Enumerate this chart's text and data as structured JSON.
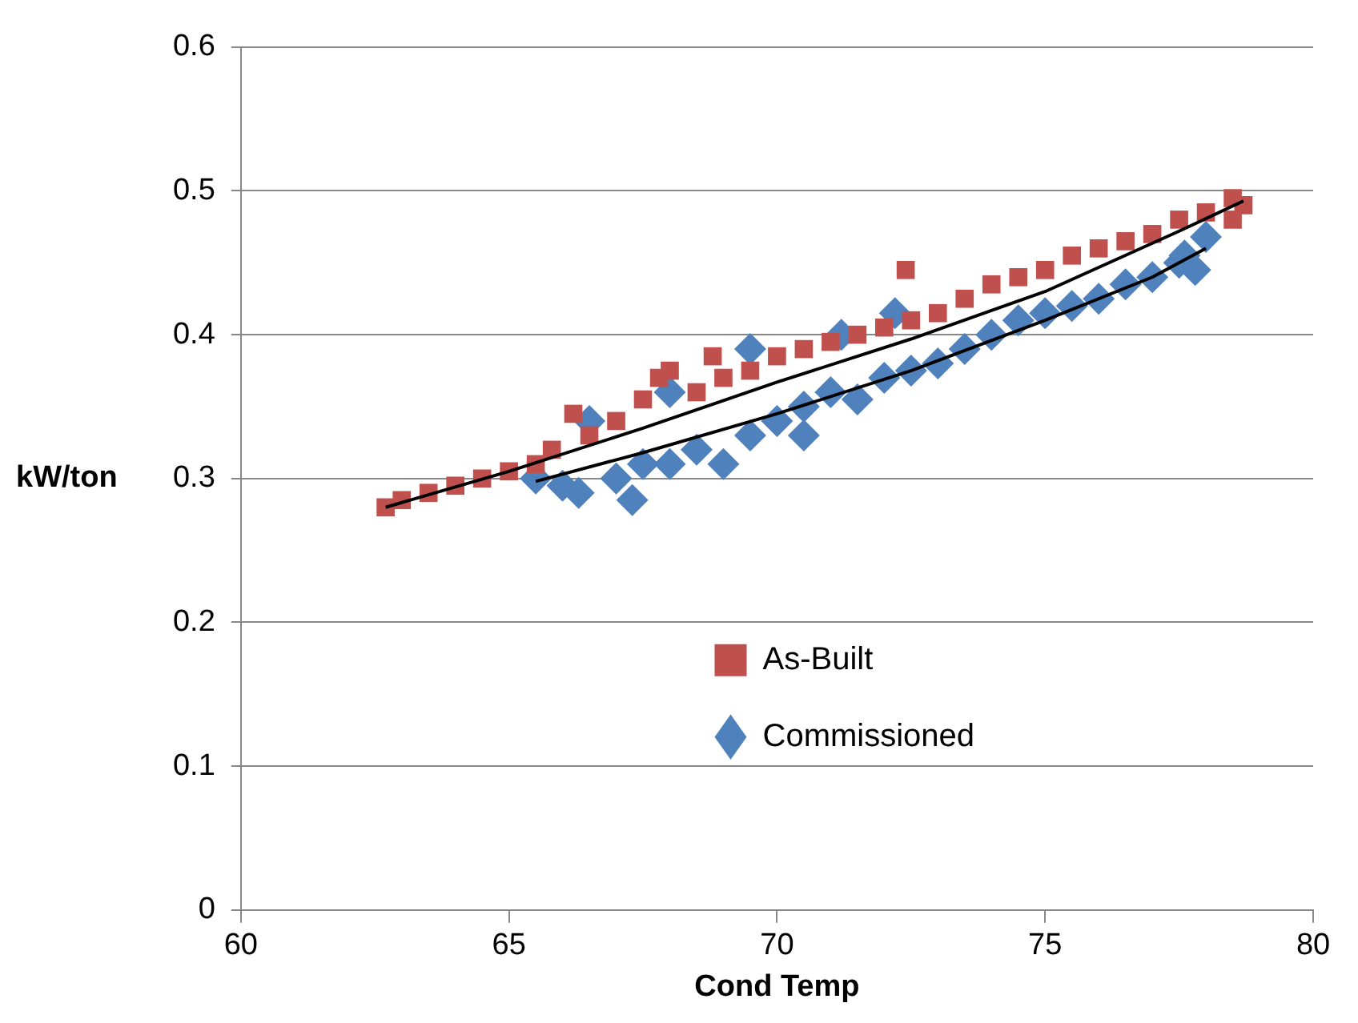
{
  "chart_data": {
    "type": "scatter",
    "xlabel": "Cond Temp",
    "ylabel": "kW/ton",
    "xlim": [
      60,
      80
    ],
    "ylim": [
      0,
      0.6
    ],
    "xticks": [
      60,
      65,
      70,
      75,
      80
    ],
    "yticks": [
      0,
      0.1,
      0.2,
      0.3,
      0.4,
      0.5,
      0.6
    ],
    "grid": "y",
    "legend": "bottom",
    "series": [
      {
        "name": "As-Built",
        "color": "#c0504d",
        "marker": "square",
        "x": [
          62.7,
          63,
          63.5,
          64,
          64.5,
          65,
          65.5,
          65.8,
          66.2,
          66.5,
          67,
          67.5,
          67.8,
          68,
          68.5,
          68.8,
          69,
          69.5,
          70,
          70.5,
          71,
          71.5,
          72,
          72.4,
          72.5,
          73,
          73.5,
          74,
          74.5,
          75,
          75.5,
          76,
          76.5,
          77,
          77.5,
          78,
          78.5,
          78.7,
          78.5
        ],
        "values": [
          0.28,
          0.285,
          0.29,
          0.295,
          0.3,
          0.305,
          0.31,
          0.32,
          0.345,
          0.33,
          0.34,
          0.355,
          0.37,
          0.375,
          0.36,
          0.385,
          0.37,
          0.375,
          0.385,
          0.39,
          0.395,
          0.4,
          0.405,
          0.445,
          0.41,
          0.415,
          0.425,
          0.435,
          0.44,
          0.445,
          0.455,
          0.46,
          0.465,
          0.47,
          0.48,
          0.485,
          0.495,
          0.49,
          0.48
        ]
      },
      {
        "name": "Commissioned",
        "color": "#4f81bd",
        "marker": "diamond",
        "x": [
          65.5,
          66,
          66.3,
          66.5,
          67,
          67.3,
          67.5,
          68,
          68,
          68.5,
          69,
          69.5,
          69.5,
          70,
          70.5,
          70.5,
          71,
          71.2,
          71.5,
          72,
          72.2,
          72.5,
          73,
          73.5,
          74,
          74.5,
          75,
          75.5,
          76,
          76.5,
          77,
          77.5,
          77.6,
          78,
          77.8
        ],
        "values": [
          0.3,
          0.295,
          0.29,
          0.34,
          0.3,
          0.285,
          0.31,
          0.36,
          0.31,
          0.32,
          0.31,
          0.39,
          0.33,
          0.34,
          0.33,
          0.35,
          0.36,
          0.4,
          0.355,
          0.37,
          0.415,
          0.375,
          0.38,
          0.39,
          0.4,
          0.41,
          0.415,
          0.42,
          0.425,
          0.435,
          0.44,
          0.45,
          0.455,
          0.468,
          0.445
        ]
      },
      {
        "type": "line",
        "color": "#000000",
        "marker": "none",
        "x": [
          62.7,
          65,
          67.5,
          70,
          72.5,
          75,
          77.5,
          78.7
        ],
        "values": [
          0.28,
          0.305,
          0.335,
          0.367,
          0.397,
          0.43,
          0.472,
          0.493
        ]
      },
      {
        "type": "line",
        "color": "#000000",
        "marker": "none",
        "x": [
          65.5,
          67.5,
          70,
          72.5,
          75,
          77,
          78
        ],
        "values": [
          0.298,
          0.318,
          0.345,
          0.375,
          0.41,
          0.44,
          0.46
        ]
      }
    ]
  }
}
